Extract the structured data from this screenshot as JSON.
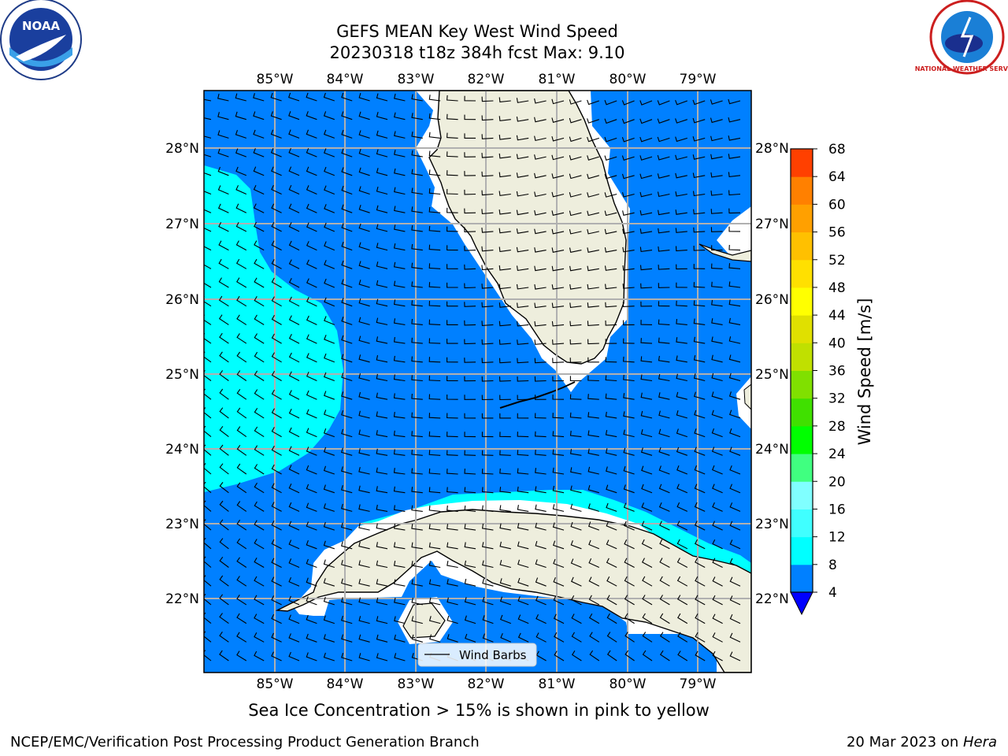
{
  "title": {
    "line1": "GEFS MEAN Key West Wind Speed",
    "line2": "20230318 t18z 384h fcst   Max: 9.10"
  },
  "map": {
    "lon_labels": [
      "85°W",
      "84°W",
      "83°W",
      "82°W",
      "81°W",
      "80°W",
      "79°W"
    ],
    "lat_labels": [
      "28°N",
      "27°N",
      "26°N",
      "25°N",
      "24°N",
      "23°N",
      "22°N"
    ],
    "legend_label": "Wind Barbs",
    "colors": {
      "ocean_4_8": "#0080ff",
      "ocean_8_12": "#00ffff",
      "land": "#eeeedd",
      "gridline": "#b0b0b0"
    }
  },
  "colorbar": {
    "label": "Wind Speed [m/s]",
    "ticks": [
      "4",
      "8",
      "12",
      "16",
      "20",
      "24",
      "28",
      "32",
      "36",
      "40",
      "44",
      "48",
      "52",
      "56",
      "60",
      "64",
      "68"
    ],
    "colors": [
      "#0080ff",
      "#00ffff",
      "#40ffff",
      "#80ffff",
      "#40ff80",
      "#00ff00",
      "#40e000",
      "#80e000",
      "#c0e000",
      "#e0e000",
      "#ffff00",
      "#ffe000",
      "#ffc000",
      "#ffa000",
      "#ff8000",
      "#ff4000",
      "#ff2000",
      "#ff0000"
    ],
    "underflow_color": "#0000ff"
  },
  "logos": {
    "noaa_text": "NOAA",
    "nws_text": "NATIONAL WEATHER SERVICE"
  },
  "footer": {
    "note": "Sea Ice Concentration > 15% is shown in pink to yellow",
    "left": "NCEP/EMC/Verification Post Processing Product Generation Branch",
    "date": "20 Mar 2023 on ",
    "host": "Hera"
  }
}
